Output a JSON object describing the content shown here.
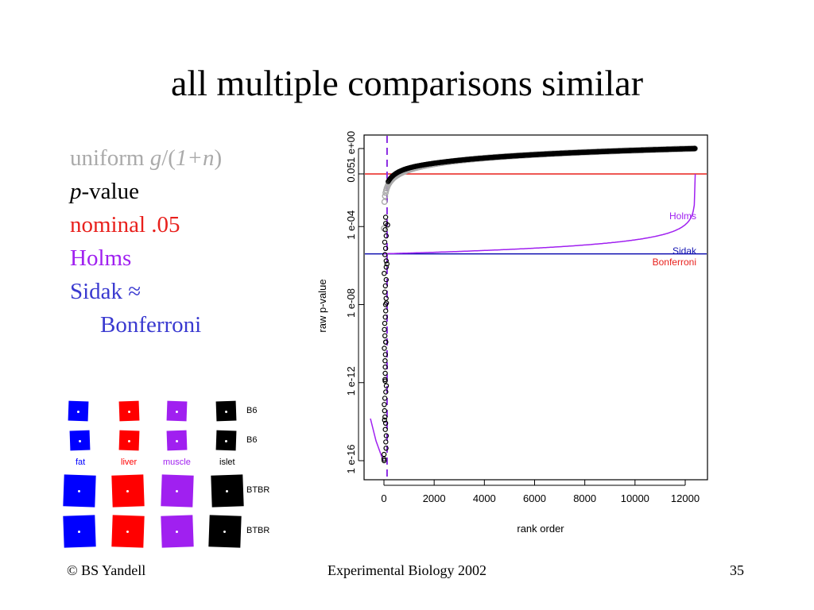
{
  "slide": {
    "title": "all multiple comparisons similar",
    "legend": {
      "uniform_a": "uniform ",
      "uniform_b": "g",
      "uniform_c": "/(",
      "uniform_d": "1+n",
      "uniform_e": ")",
      "pvalue_a": "p",
      "pvalue_b": "-value",
      "nominal": "nominal .05",
      "holms": "Holms",
      "sidak": "Sidak ≈",
      "bonferroni": "Bonferroni"
    },
    "colors": {
      "grey": "#aaaaaa",
      "red": "#e8201c",
      "purple": "#a020f0",
      "blue": "#3a3ad0",
      "dark_blue": "#1010b0"
    },
    "swatches": {
      "columns": [
        "fat",
        "liver",
        "muscle",
        "islet"
      ],
      "row_labels": [
        "B6",
        "B6",
        "BTBR",
        "BTBR"
      ],
      "column_colors": [
        "#0000ff",
        "#ff0000",
        "#a020f0",
        "#000000"
      ]
    },
    "footer": {
      "left": "© BS Yandell",
      "center": "Experimental Biology 2002",
      "right": "35"
    }
  },
  "chart_data": {
    "type": "scatter",
    "xlabel": "rank order",
    "ylabel": "raw p-value",
    "xlim": [
      0,
      12400
    ],
    "x_ticks": [
      "0",
      "2000",
      "4000",
      "6000",
      "8000",
      "10000",
      "12000"
    ],
    "y_ticks": [
      "1 e-16",
      "1 e-12",
      "1 e-08",
      "1 e-04",
      "0.05",
      "1 e+00"
    ],
    "ylim_log10": [
      -17,
      0
    ],
    "reference_line_x": 124,
    "annotations": [
      "Holms",
      "Sidak",
      "Bonferroni"
    ],
    "lines": {
      "nominal": 0.05,
      "sidak_bonferroni": 4e-06
    }
  }
}
